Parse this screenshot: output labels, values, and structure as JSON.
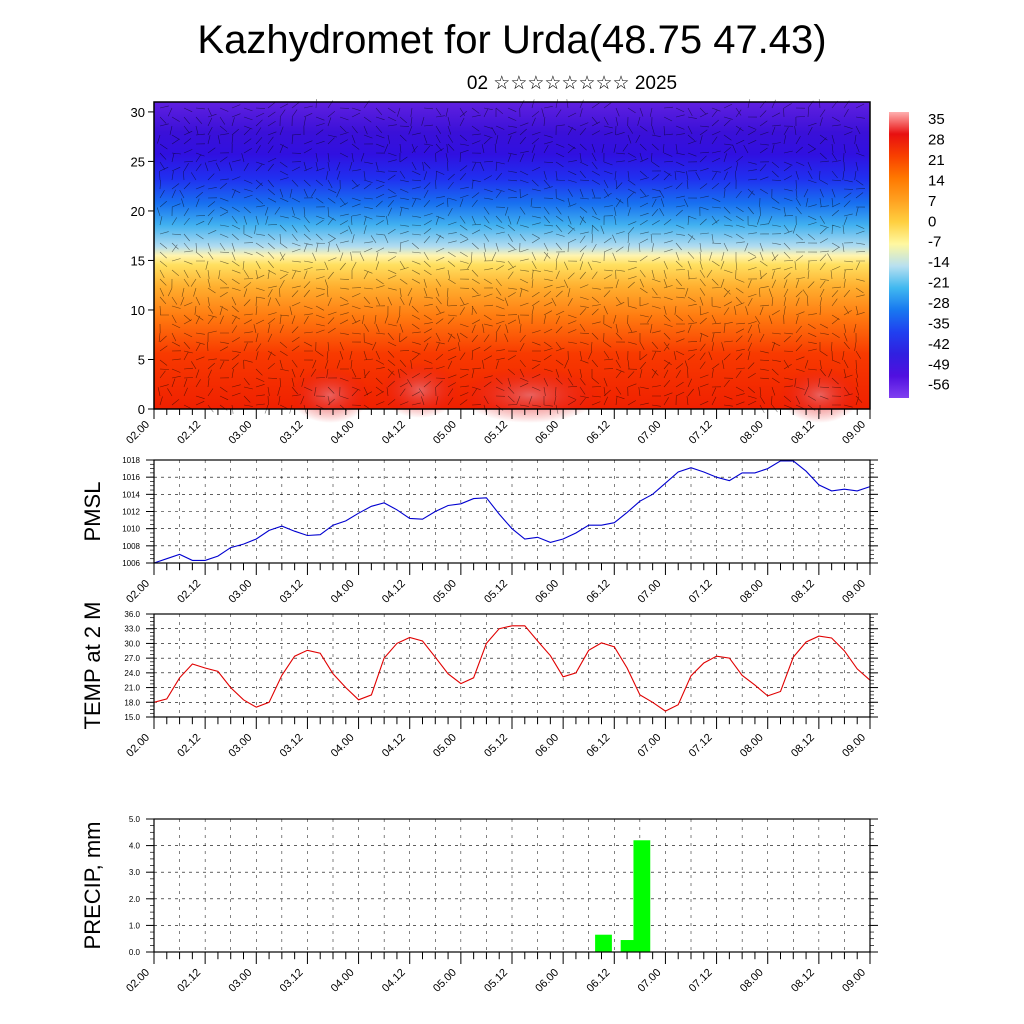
{
  "header": {
    "title": "Kazhydromet for Urda(48.75 47.43)",
    "subtitle": "02 ☆☆☆☆☆☆☆☆ 2025"
  },
  "time_labels": [
    "02.00",
    "02.12",
    "03.00",
    "03.12",
    "04.00",
    "04.12",
    "05.00",
    "05.12",
    "06.00",
    "06.12",
    "07.00",
    "07.12",
    "08.00",
    "08.12",
    "09.00"
  ],
  "chart_data": [
    {
      "type": "heatmap",
      "title": "",
      "xlabel": "",
      "ylabel": "",
      "y_ticks": [
        0,
        5,
        10,
        15,
        20,
        25,
        30
      ],
      "ylim": [
        0,
        31
      ],
      "colorbar": {
        "labels": [
          "35",
          "28",
          "21",
          "14",
          "7",
          "0",
          "-7",
          "-14",
          "-21",
          "-28",
          "-35",
          "-42",
          "-49",
          "-56"
        ],
        "colors": [
          "#ffb0b0",
          "#e81010",
          "#f84000",
          "#ff7800",
          "#ffa020",
          "#ffd040",
          "#fff8a0",
          "#b8e0f0",
          "#40b8f0",
          "#1878f0",
          "#2040f0",
          "#3020e0",
          "#5010e0",
          "#8040f0"
        ]
      }
    },
    {
      "type": "line",
      "ylabel": "PMSL",
      "y_ticks": [
        "1006",
        "1008",
        "1010",
        "1012",
        "1014",
        "1016",
        "1018"
      ],
      "ylim": [
        1006,
        1018
      ],
      "color": "#0000d0",
      "x": [
        0,
        3,
        6,
        9,
        12,
        15,
        18,
        21,
        24,
        27,
        30,
        33,
        36,
        39,
        42,
        45,
        48,
        51,
        54,
        57,
        60,
        63,
        66,
        69,
        72,
        75,
        78,
        81,
        84,
        87,
        90,
        93,
        96,
        99,
        102,
        105,
        108,
        111,
        114,
        117,
        120,
        123,
        126,
        129,
        132,
        135,
        138,
        141,
        144,
        147,
        150,
        153,
        156,
        159,
        162,
        165,
        168
      ],
      "values": [
        1006.0,
        1006.5,
        1007.0,
        1006.3,
        1006.3,
        1006.8,
        1007.8,
        1008.2,
        1008.8,
        1009.8,
        1010.3,
        1009.7,
        1009.2,
        1009.3,
        1010.4,
        1010.9,
        1011.8,
        1012.6,
        1013.0,
        1012.2,
        1011.2,
        1011.1,
        1012.0,
        1012.7,
        1012.9,
        1013.5,
        1013.6,
        1011.7,
        1010.0,
        1008.8,
        1009.0,
        1008.4,
        1008.8,
        1009.5,
        1010.4,
        1010.4,
        1010.7,
        1011.9,
        1013.2,
        1014.0,
        1015.3,
        1016.6,
        1017.1,
        1016.6,
        1016.0,
        1015.6,
        1016.5,
        1016.5,
        1017.0,
        1017.9,
        1017.9,
        1016.7,
        1015.1,
        1014.4,
        1014.6,
        1014.4,
        1014.9
      ]
    },
    {
      "type": "line",
      "ylabel": "TEMP at 2 M",
      "y_ticks": [
        "15.0",
        "18.0",
        "21.0",
        "24.0",
        "27.0",
        "30.0",
        "33.0",
        "36.0"
      ],
      "ylim": [
        15,
        36
      ],
      "color": "#e00000",
      "x": [
        0,
        3,
        6,
        9,
        12,
        15,
        18,
        21,
        24,
        27,
        30,
        33,
        36,
        39,
        42,
        45,
        48,
        51,
        54,
        57,
        60,
        63,
        66,
        69,
        72,
        75,
        78,
        81,
        84,
        87,
        90,
        93,
        96,
        99,
        102,
        105,
        108,
        111,
        114,
        117,
        120,
        123,
        126,
        129,
        132,
        135,
        138,
        141,
        144,
        147,
        150,
        153,
        156,
        159,
        162,
        165,
        168
      ],
      "values": [
        18.0,
        18.7,
        23.0,
        25.8,
        25.0,
        24.3,
        21.0,
        18.5,
        17.0,
        18.0,
        23.5,
        27.4,
        28.6,
        28.0,
        23.8,
        21.0,
        18.5,
        19.5,
        27.0,
        30.0,
        31.2,
        30.5,
        27.2,
        23.8,
        21.8,
        23.0,
        30.0,
        33.0,
        33.6,
        33.6,
        30.5,
        27.5,
        23.2,
        24.0,
        28.6,
        30.1,
        29.3,
        25.0,
        19.5,
        18.0,
        16.2,
        17.5,
        23.4,
        26.0,
        27.4,
        27.0,
        23.5,
        21.5,
        19.3,
        20.2,
        27.2,
        30.3,
        31.5,
        31.1,
        28.5,
        24.8,
        22.5
      ]
    },
    {
      "type": "bar",
      "ylabel": "PRECIP, mm",
      "y_ticks": [
        "0.0",
        "1.0",
        "2.0",
        "3.0",
        "4.0",
        "5.0"
      ],
      "ylim": [
        0,
        5
      ],
      "color": "#00ff00",
      "bars": [
        {
          "x": 105,
          "value": 0.65
        },
        {
          "x": 111,
          "value": 0.45
        },
        {
          "x": 114,
          "value": 4.2
        }
      ]
    }
  ]
}
